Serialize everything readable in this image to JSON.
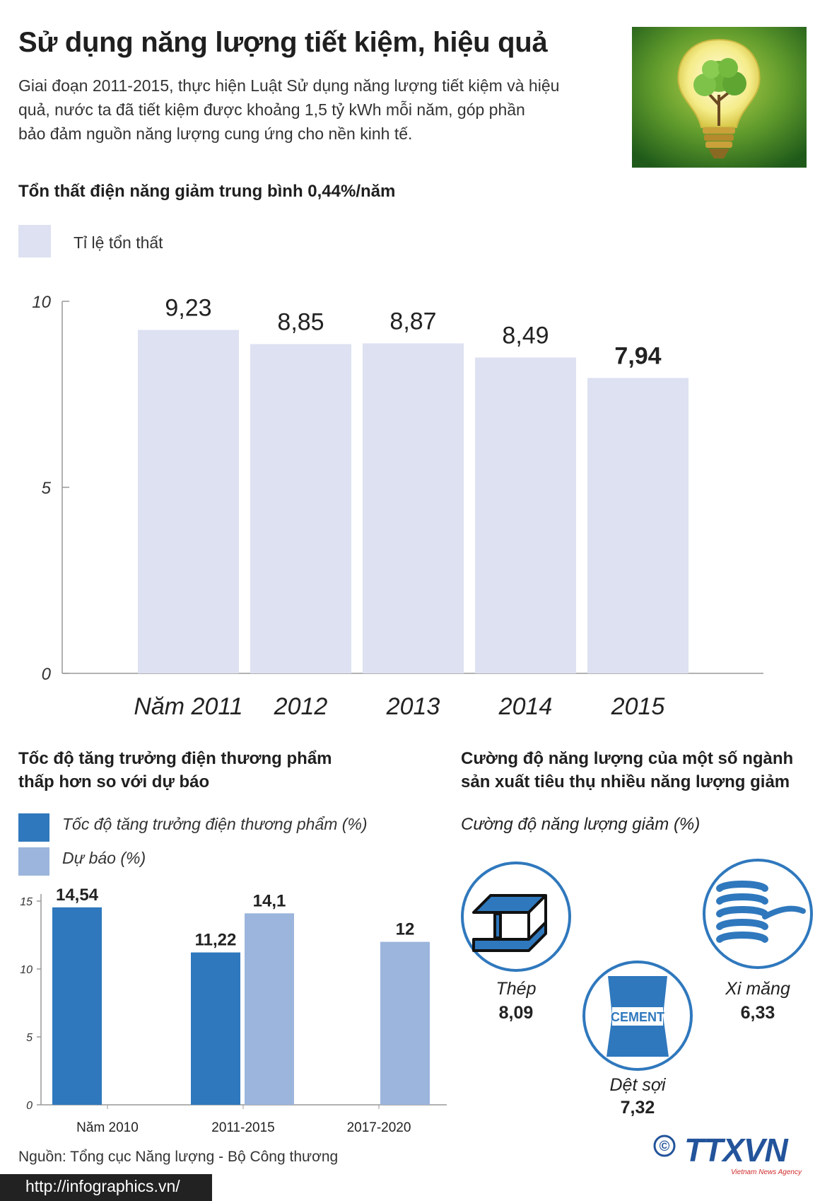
{
  "header": {
    "title": "Sử dụng năng lượng tiết kiệm, hiệu quả",
    "intro_line1": "Giai đoạn 2011-2015, thực hiện Luật Sử dụng năng lượng tiết kiệm và hiệu",
    "intro_line2": "quả, nước ta đã tiết kiệm được  khoảng 1,5 tỷ kWh mỗi năm, góp phần",
    "intro_line3": "bảo đảm nguồn năng lượng cung ứng cho nền kinh tế."
  },
  "section1": {
    "title": "Tổn thất điện năng giảm trung bình 0,44%/năm",
    "legend": "Tỉ lệ tổn thất"
  },
  "section2": {
    "title_line1": "Tốc độ tăng trưởng điện thương phẩm",
    "title_line2": "thấp hơn so với dự báo",
    "legend_1": "Tốc độ tăng trưởng điện thương phẩm (%)",
    "legend_2": "Dự báo (%)"
  },
  "section3": {
    "title_line1": "Cường độ năng lượng của một số ngành",
    "title_line2": "sản xuất tiêu thụ nhiều năng lượng giảm",
    "legend": "Cường độ năng lượng giảm (%)",
    "cement_text": "CEMENT",
    "industries": [
      {
        "label": "Thép",
        "value": "8,09",
        "icon": "steel-beam-icon"
      },
      {
        "label": "Dệt sợi",
        "value": "7,32",
        "icon": "cement-bag-icon"
      },
      {
        "label": "Xi măng",
        "value": "6,33",
        "icon": "yarn-spool-icon"
      }
    ]
  },
  "footer": {
    "source": "Nguồn: Tổng cục Năng lượng - Bộ Công thương",
    "url": "http://infographics.vn/",
    "copyright": "©",
    "logo_text": "TTXVN",
    "logo_subtext": "Vietnam News Agency"
  },
  "colors": {
    "bar_loss": "#dde1f1",
    "bar_actual": "#2f78bd",
    "bar_forecast": "#9bb5dc",
    "circle_icon": "#2f78bd",
    "logo": "#23549b"
  },
  "chart_data": [
    {
      "type": "bar",
      "categories": [
        "Năm 2011",
        "2012",
        "2013",
        "2014",
        "2015"
      ],
      "value_labels": [
        "9,23",
        "8,85",
        "8,87",
        "8,49",
        "7,94"
      ],
      "series": [
        {
          "name": "Tỉ lệ tổn thất",
          "values": [
            9.23,
            8.85,
            8.87,
            8.49,
            7.94
          ]
        }
      ],
      "yticks": [
        "0",
        "5",
        "10"
      ],
      "ylim": [
        0,
        10
      ]
    },
    {
      "type": "bar",
      "categories": [
        "Năm 2010",
        "2011-2015",
        "2017-2020"
      ],
      "series": [
        {
          "name": "Tốc độ tăng trưởng điện thương phẩm (%)",
          "values": [
            14.54,
            11.22,
            null
          ],
          "labels": [
            "14,54",
            "11,22",
            ""
          ]
        },
        {
          "name": "Dự báo (%)",
          "values": [
            null,
            14.1,
            12
          ],
          "labels": [
            "",
            "14,1",
            "12"
          ]
        }
      ],
      "yticks": [
        "0",
        "5",
        "10",
        "15"
      ],
      "ylim": [
        0,
        15
      ]
    }
  ]
}
